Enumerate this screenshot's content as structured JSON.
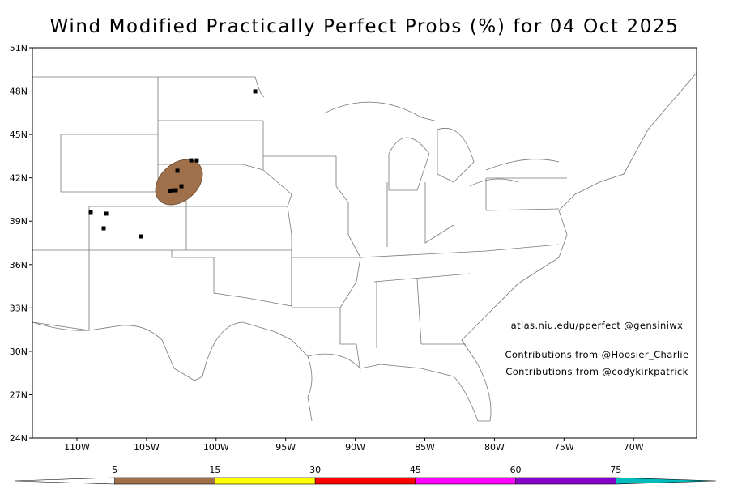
{
  "title": "Wind Modified Practically Perfect Probs (%) for 04 Oct 2025",
  "lat_ticks": [
    {
      "value": 51,
      "label": "51N"
    },
    {
      "value": 48,
      "label": "48N"
    },
    {
      "value": 45,
      "label": "45N"
    },
    {
      "value": 42,
      "label": "42N"
    },
    {
      "value": 39,
      "label": "39N"
    },
    {
      "value": 36,
      "label": "36N"
    },
    {
      "value": 33,
      "label": "33N"
    },
    {
      "value": 30,
      "label": "30N"
    },
    {
      "value": 27,
      "label": "27N"
    },
    {
      "value": 24,
      "label": "24N"
    }
  ],
  "lon_ticks": [
    {
      "value": -110,
      "label": "110W"
    },
    {
      "value": -105,
      "label": "105W"
    },
    {
      "value": -100,
      "label": "100W"
    },
    {
      "value": -95,
      "label": "95W"
    },
    {
      "value": -90,
      "label": "90W"
    },
    {
      "value": -85,
      "label": "85W"
    },
    {
      "value": -80,
      "label": "80W"
    },
    {
      "value": -75,
      "label": "75W"
    },
    {
      "value": -70,
      "label": "70W"
    }
  ],
  "annotations": [
    "atlas.niu.edu/pperfect @gensiniwx",
    "Contributions from @Hoosier_Charlie",
    "Contributions from @codykirkpatrick"
  ],
  "reports": {
    "lat": [
      47.98,
      43.21,
      43.21,
      42.49,
      41.42,
      41.09,
      41.14,
      41.14,
      39.63,
      39.52,
      38.51,
      37.95
    ],
    "lon": [
      -97.19,
      -101.79,
      -101.39,
      -102.78,
      -102.49,
      -103.31,
      -103.07,
      -102.9,
      -109.01,
      -107.9,
      -108.08,
      -105.4
    ]
  },
  "colorbar": {
    "levels": [
      5,
      15,
      30,
      45,
      60,
      75
    ],
    "colors": [
      "#ffffff",
      "#a0704a",
      "#ffff00",
      "#ff0000",
      "#ff00ff",
      "#8800cc",
      "#00bbbb"
    ]
  }
}
